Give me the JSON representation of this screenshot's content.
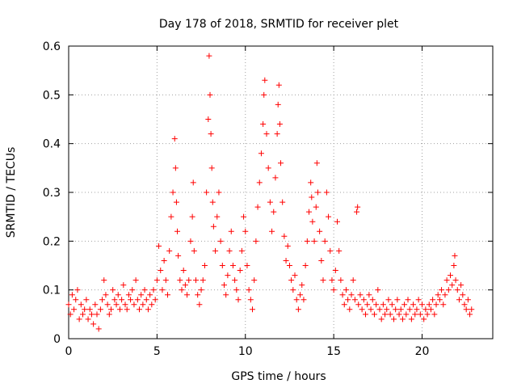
{
  "chart_data": {
    "type": "scatter",
    "title": "Day 178 of 2018, SRMTID for receiver plet",
    "xlabel": "GPS time / hours",
    "ylabel": "SRMTID / TECUs",
    "xlim": [
      0,
      24
    ],
    "ylim": [
      0,
      0.6
    ],
    "x_ticks": [
      0,
      5,
      10,
      15,
      20
    ],
    "y_ticks": [
      0,
      0.1,
      0.2,
      0.3,
      0.4,
      0.5,
      0.6
    ],
    "x_tick_labels": [
      "0",
      "5",
      "10",
      "15",
      "20"
    ],
    "y_tick_labels": [
      "0",
      "0.1",
      "0.2",
      "0.3",
      "0.4",
      "0.5",
      "0.6"
    ],
    "grid": true,
    "marker": "+",
    "marker_color": "#ff0000",
    "series": [
      {
        "name": "SRMTID",
        "points": [
          [
            0.0,
            0.07
          ],
          [
            0.1,
            0.05
          ],
          [
            0.2,
            0.09
          ],
          [
            0.3,
            0.06
          ],
          [
            0.4,
            0.08
          ],
          [
            0.5,
            0.1
          ],
          [
            0.6,
            0.04
          ],
          [
            0.7,
            0.07
          ],
          [
            0.8,
            0.05
          ],
          [
            0.9,
            0.06
          ],
          [
            1.0,
            0.08
          ],
          [
            1.1,
            0.04
          ],
          [
            1.2,
            0.06
          ],
          [
            1.3,
            0.05
          ],
          [
            1.4,
            0.03
          ],
          [
            1.5,
            0.07
          ],
          [
            1.6,
            0.05
          ],
          [
            1.7,
            0.02
          ],
          [
            1.8,
            0.06
          ],
          [
            1.9,
            0.08
          ],
          [
            2.0,
            0.12
          ],
          [
            2.1,
            0.09
          ],
          [
            2.2,
            0.07
          ],
          [
            2.3,
            0.05
          ],
          [
            2.4,
            0.06
          ],
          [
            2.5,
            0.1
          ],
          [
            2.6,
            0.08
          ],
          [
            2.7,
            0.07
          ],
          [
            2.8,
            0.09
          ],
          [
            2.9,
            0.06
          ],
          [
            3.0,
            0.08
          ],
          [
            3.1,
            0.11
          ],
          [
            3.2,
            0.07
          ],
          [
            3.3,
            0.06
          ],
          [
            3.4,
            0.09
          ],
          [
            3.5,
            0.08
          ],
          [
            3.6,
            0.1
          ],
          [
            3.7,
            0.07
          ],
          [
            3.8,
            0.12
          ],
          [
            3.9,
            0.08
          ],
          [
            4.0,
            0.06
          ],
          [
            4.1,
            0.09
          ],
          [
            4.2,
            0.07
          ],
          [
            4.3,
            0.1
          ],
          [
            4.4,
            0.08
          ],
          [
            4.5,
            0.06
          ],
          [
            4.6,
            0.09
          ],
          [
            4.7,
            0.07
          ],
          [
            4.8,
            0.1
          ],
          [
            4.9,
            0.08
          ],
          [
            5.0,
            0.12
          ],
          [
            5.1,
            0.19
          ],
          [
            5.2,
            0.14
          ],
          [
            5.3,
            0.1
          ],
          [
            5.4,
            0.16
          ],
          [
            5.5,
            0.12
          ],
          [
            5.6,
            0.09
          ],
          [
            5.7,
            0.18
          ],
          [
            5.8,
            0.25
          ],
          [
            5.9,
            0.3
          ],
          [
            6.0,
            0.41
          ],
          [
            6.05,
            0.35
          ],
          [
            6.1,
            0.28
          ],
          [
            6.15,
            0.22
          ],
          [
            6.2,
            0.17
          ],
          [
            6.3,
            0.12
          ],
          [
            6.4,
            0.1
          ],
          [
            6.5,
            0.14
          ],
          [
            6.6,
            0.11
          ],
          [
            6.7,
            0.09
          ],
          [
            6.8,
            0.12
          ],
          [
            6.9,
            0.2
          ],
          [
            7.0,
            0.25
          ],
          [
            7.05,
            0.32
          ],
          [
            7.1,
            0.18
          ],
          [
            7.2,
            0.12
          ],
          [
            7.3,
            0.09
          ],
          [
            7.4,
            0.07
          ],
          [
            7.5,
            0.1
          ],
          [
            7.6,
            0.12
          ],
          [
            7.7,
            0.15
          ],
          [
            7.8,
            0.3
          ],
          [
            7.9,
            0.45
          ],
          [
            7.95,
            0.58
          ],
          [
            8.0,
            0.5
          ],
          [
            8.05,
            0.42
          ],
          [
            8.1,
            0.35
          ],
          [
            8.15,
            0.28
          ],
          [
            8.2,
            0.23
          ],
          [
            8.3,
            0.18
          ],
          [
            8.4,
            0.25
          ],
          [
            8.5,
            0.3
          ],
          [
            8.6,
            0.2
          ],
          [
            8.7,
            0.15
          ],
          [
            8.8,
            0.11
          ],
          [
            8.9,
            0.09
          ],
          [
            9.0,
            0.13
          ],
          [
            9.1,
            0.18
          ],
          [
            9.2,
            0.22
          ],
          [
            9.3,
            0.15
          ],
          [
            9.4,
            0.12
          ],
          [
            9.5,
            0.1
          ],
          [
            9.6,
            0.08
          ],
          [
            9.7,
            0.14
          ],
          [
            9.8,
            0.18
          ],
          [
            9.9,
            0.25
          ],
          [
            10.0,
            0.22
          ],
          [
            10.1,
            0.15
          ],
          [
            10.2,
            0.1
          ],
          [
            10.3,
            0.08
          ],
          [
            10.4,
            0.06
          ],
          [
            10.5,
            0.12
          ],
          [
            10.6,
            0.2
          ],
          [
            10.7,
            0.27
          ],
          [
            10.8,
            0.32
          ],
          [
            10.9,
            0.38
          ],
          [
            11.0,
            0.44
          ],
          [
            11.05,
            0.5
          ],
          [
            11.1,
            0.53
          ],
          [
            11.2,
            0.42
          ],
          [
            11.3,
            0.35
          ],
          [
            11.4,
            0.28
          ],
          [
            11.5,
            0.22
          ],
          [
            11.6,
            0.26
          ],
          [
            11.7,
            0.33
          ],
          [
            11.8,
            0.42
          ],
          [
            11.85,
            0.48
          ],
          [
            11.9,
            0.52
          ],
          [
            11.95,
            0.44
          ],
          [
            12.0,
            0.36
          ],
          [
            12.1,
            0.28
          ],
          [
            12.2,
            0.21
          ],
          [
            12.3,
            0.16
          ],
          [
            12.4,
            0.19
          ],
          [
            12.5,
            0.15
          ],
          [
            12.6,
            0.12
          ],
          [
            12.7,
            0.1
          ],
          [
            12.8,
            0.13
          ],
          [
            12.9,
            0.08
          ],
          [
            13.0,
            0.06
          ],
          [
            13.1,
            0.09
          ],
          [
            13.2,
            0.11
          ],
          [
            13.3,
            0.08
          ],
          [
            13.4,
            0.15
          ],
          [
            13.5,
            0.2
          ],
          [
            13.6,
            0.26
          ],
          [
            13.7,
            0.32
          ],
          [
            13.75,
            0.29
          ],
          [
            13.8,
            0.24
          ],
          [
            13.9,
            0.2
          ],
          [
            14.0,
            0.27
          ],
          [
            14.05,
            0.36
          ],
          [
            14.1,
            0.3
          ],
          [
            14.2,
            0.22
          ],
          [
            14.3,
            0.16
          ],
          [
            14.4,
            0.12
          ],
          [
            14.5,
            0.2
          ],
          [
            14.6,
            0.3
          ],
          [
            14.7,
            0.25
          ],
          [
            14.8,
            0.18
          ],
          [
            14.9,
            0.12
          ],
          [
            15.0,
            0.1
          ],
          [
            15.1,
            0.14
          ],
          [
            15.2,
            0.24
          ],
          [
            15.3,
            0.18
          ],
          [
            15.4,
            0.12
          ],
          [
            15.5,
            0.09
          ],
          [
            15.6,
            0.07
          ],
          [
            15.7,
            0.1
          ],
          [
            15.8,
            0.08
          ],
          [
            15.9,
            0.06
          ],
          [
            16.0,
            0.09
          ],
          [
            16.1,
            0.12
          ],
          [
            16.2,
            0.08
          ],
          [
            16.3,
            0.26
          ],
          [
            16.35,
            0.27
          ],
          [
            16.4,
            0.07
          ],
          [
            16.5,
            0.09
          ],
          [
            16.6,
            0.06
          ],
          [
            16.7,
            0.08
          ],
          [
            16.8,
            0.05
          ],
          [
            16.9,
            0.07
          ],
          [
            17.0,
            0.09
          ],
          [
            17.1,
            0.06
          ],
          [
            17.2,
            0.08
          ],
          [
            17.3,
            0.05
          ],
          [
            17.4,
            0.07
          ],
          [
            17.5,
            0.1
          ],
          [
            17.6,
            0.06
          ],
          [
            17.7,
            0.04
          ],
          [
            17.8,
            0.07
          ],
          [
            17.9,
            0.05
          ],
          [
            18.0,
            0.06
          ],
          [
            18.1,
            0.08
          ],
          [
            18.2,
            0.05
          ],
          [
            18.3,
            0.07
          ],
          [
            18.4,
            0.04
          ],
          [
            18.5,
            0.06
          ],
          [
            18.6,
            0.08
          ],
          [
            18.7,
            0.05
          ],
          [
            18.8,
            0.06
          ],
          [
            18.9,
            0.04
          ],
          [
            19.0,
            0.07
          ],
          [
            19.1,
            0.05
          ],
          [
            19.2,
            0.08
          ],
          [
            19.3,
            0.06
          ],
          [
            19.4,
            0.04
          ],
          [
            19.5,
            0.07
          ],
          [
            19.6,
            0.05
          ],
          [
            19.7,
            0.06
          ],
          [
            19.8,
            0.08
          ],
          [
            19.9,
            0.05
          ],
          [
            20.0,
            0.07
          ],
          [
            20.1,
            0.04
          ],
          [
            20.2,
            0.06
          ],
          [
            20.3,
            0.05
          ],
          [
            20.4,
            0.07
          ],
          [
            20.5,
            0.06
          ],
          [
            20.6,
            0.08
          ],
          [
            20.7,
            0.05
          ],
          [
            20.8,
            0.07
          ],
          [
            20.9,
            0.09
          ],
          [
            21.0,
            0.08
          ],
          [
            21.1,
            0.1
          ],
          [
            21.2,
            0.07
          ],
          [
            21.3,
            0.09
          ],
          [
            21.4,
            0.12
          ],
          [
            21.5,
            0.1
          ],
          [
            21.6,
            0.13
          ],
          [
            21.7,
            0.11
          ],
          [
            21.8,
            0.15
          ],
          [
            21.85,
            0.17
          ],
          [
            21.9,
            0.12
          ],
          [
            22.0,
            0.1
          ],
          [
            22.1,
            0.08
          ],
          [
            22.2,
            0.11
          ],
          [
            22.3,
            0.09
          ],
          [
            22.4,
            0.07
          ],
          [
            22.5,
            0.06
          ],
          [
            22.6,
            0.08
          ],
          [
            22.7,
            0.05
          ],
          [
            22.8,
            0.06
          ]
        ]
      }
    ]
  }
}
